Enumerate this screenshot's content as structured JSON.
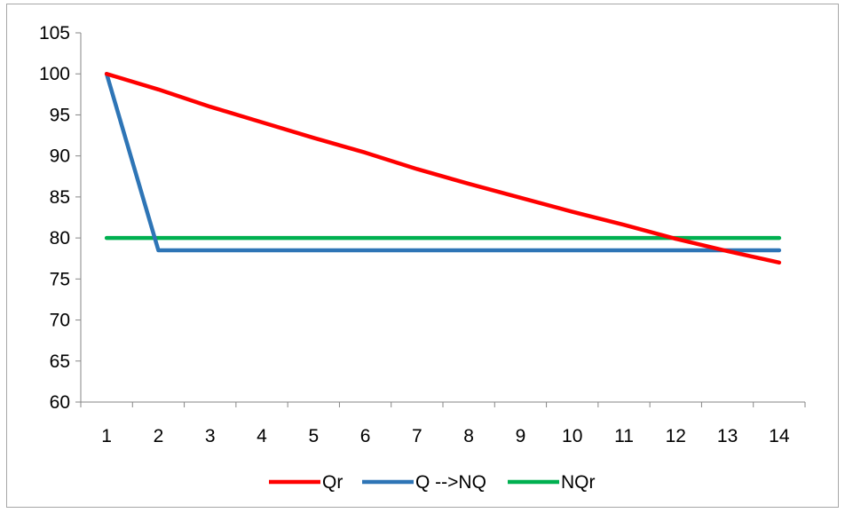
{
  "chart_data": {
    "type": "line",
    "title": "",
    "xlabel": "",
    "ylabel": "",
    "categories": [
      "1",
      "2",
      "3",
      "4",
      "5",
      "6",
      "7",
      "8",
      "9",
      "10",
      "11",
      "12",
      "13",
      "14"
    ],
    "ylim": [
      60,
      105
    ],
    "yticks": [
      60,
      65,
      70,
      75,
      80,
      85,
      90,
      95,
      100,
      105
    ],
    "grid": false,
    "legend_position": "bottom",
    "series": [
      {
        "name": "Qr",
        "color": "#ff0000",
        "values": [
          100,
          98.1,
          96,
          94.1,
          92.2,
          90.4,
          88.4,
          86.6,
          84.9,
          83.2,
          81.6,
          79.9,
          78.4,
          77
        ]
      },
      {
        "name": "Q -->NQ",
        "color": "#2e75b6",
        "values": [
          100,
          78.5,
          78.5,
          78.5,
          78.5,
          78.5,
          78.5,
          78.5,
          78.5,
          78.5,
          78.5,
          78.5,
          78.5,
          78.5
        ]
      },
      {
        "name": "NQr",
        "color": "#00b050",
        "values": [
          80,
          80,
          80,
          80,
          80,
          80,
          80,
          80,
          80,
          80,
          80,
          80,
          80,
          80
        ]
      }
    ]
  }
}
